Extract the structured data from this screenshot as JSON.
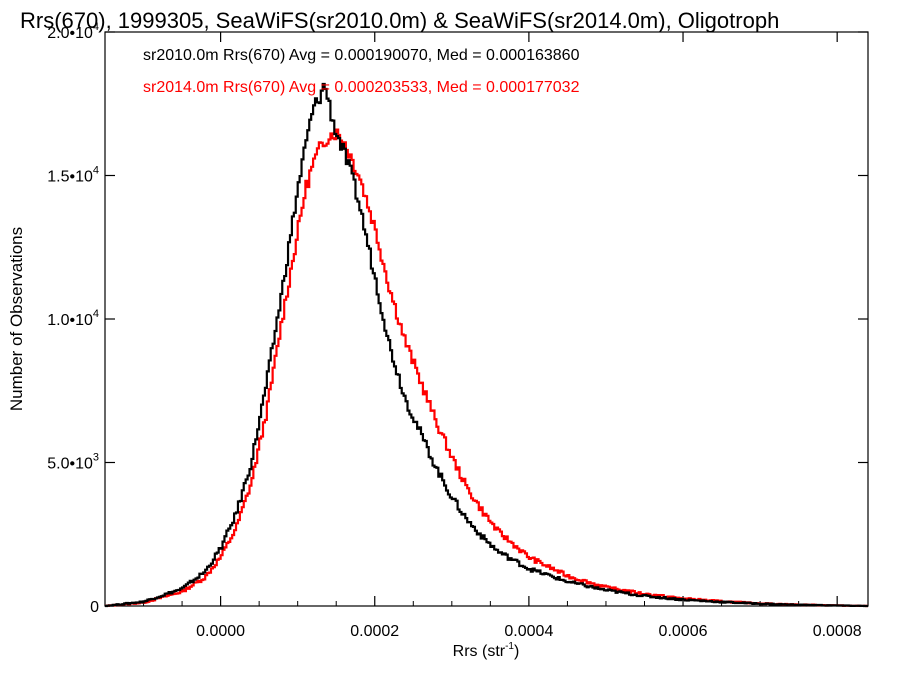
{
  "chart_data": {
    "type": "step",
    "title": "Rrs(670), 1999305, SeaWiFS(sr2010.0m) & SeaWiFS(sr2014.0m), Oligotroph",
    "xlabel": "Rrs (str",
    "xlabel_sup": "-1",
    "xlabel_end": ")",
    "ylabel": "Number of Observations",
    "xlim": [
      -0.00015,
      0.00084
    ],
    "ylim": [
      0,
      20000
    ],
    "x_ticks": [
      0.0,
      0.0002,
      0.0004,
      0.0006,
      0.0008
    ],
    "x_tick_labels": [
      "0.0000",
      "0.0002",
      "0.0004",
      "0.0006",
      "0.0008"
    ],
    "y_ticks": [
      0,
      5000,
      10000,
      15000,
      20000
    ],
    "y_tick_labels": [
      {
        "mant": "0",
        "exp": ""
      },
      {
        "mant": "5.0•1",
        "exp": ""
      },
      {
        "mant": "1.0•1",
        "exp": "4"
      },
      {
        "mant": "1.5•1",
        "exp": "4"
      },
      {
        "mant": "2.0•1",
        "exp": "4"
      }
    ],
    "y_tick_label_text": [
      "0",
      "5.0•10",
      "1.0•10",
      "1.5•10",
      "2.0•10"
    ],
    "y_tick_label_exp": [
      "",
      "3",
      "4",
      "4",
      "4"
    ],
    "legend_placement": "top-left",
    "series": [
      {
        "name": "sr2010.0m",
        "legend": "sr2010.0m Rrs(670) Avg = 0.000190070, Med = 0.000163860",
        "color": "#000000",
        "x": [
          -0.00015,
          -0.0001,
          -5e-05,
          -2e-05,
          0.0,
          2e-05,
          4e-05,
          6e-05,
          8e-05,
          0.0001,
          0.00011,
          0.00012,
          0.00013,
          0.000135,
          0.00014,
          0.000145,
          0.00015,
          0.00016,
          0.00017,
          0.00018,
          0.0002,
          0.00022,
          0.00024,
          0.00026,
          0.00028,
          0.0003,
          0.00032,
          0.00034,
          0.00036,
          0.0004,
          0.00045,
          0.0005,
          0.00055,
          0.0006,
          0.00065,
          0.0007,
          0.00075,
          0.00084
        ],
        "y": [
          0,
          150,
          600,
          1200,
          2000,
          3200,
          5000,
          7800,
          11000,
          14500,
          16000,
          17300,
          17800,
          18200,
          17600,
          17000,
          16500,
          15800,
          15000,
          14000,
          11500,
          9000,
          7200,
          6000,
          4800,
          3800,
          3000,
          2400,
          1900,
          1300,
          850,
          550,
          350,
          220,
          140,
          80,
          40,
          0
        ]
      },
      {
        "name": "sr2014.0m",
        "legend": "sr2014.0m Rrs(670) Avg = 0.000203533, Med = 0.000177032",
        "color": "#ff0000",
        "x": [
          -0.00015,
          -0.0001,
          -5e-05,
          -2e-05,
          0.0,
          2e-05,
          4e-05,
          6e-05,
          8e-05,
          0.0001,
          0.00011,
          0.00012,
          0.00013,
          0.00014,
          0.00015,
          0.00016,
          0.00017,
          0.00018,
          0.0002,
          0.00022,
          0.00024,
          0.00026,
          0.00028,
          0.0003,
          0.00032,
          0.00034,
          0.00036,
          0.0004,
          0.00045,
          0.0005,
          0.00055,
          0.0006,
          0.00065,
          0.0007,
          0.00075,
          0.00084
        ],
        "y": [
          0,
          120,
          500,
          1000,
          1700,
          2700,
          4300,
          6800,
          10000,
          13000,
          14500,
          15400,
          16000,
          16400,
          16500,
          16200,
          15600,
          15000,
          13200,
          11000,
          9200,
          7800,
          6400,
          5200,
          4100,
          3300,
          2600,
          1700,
          1050,
          650,
          420,
          260,
          160,
          90,
          45,
          0
        ]
      }
    ]
  }
}
